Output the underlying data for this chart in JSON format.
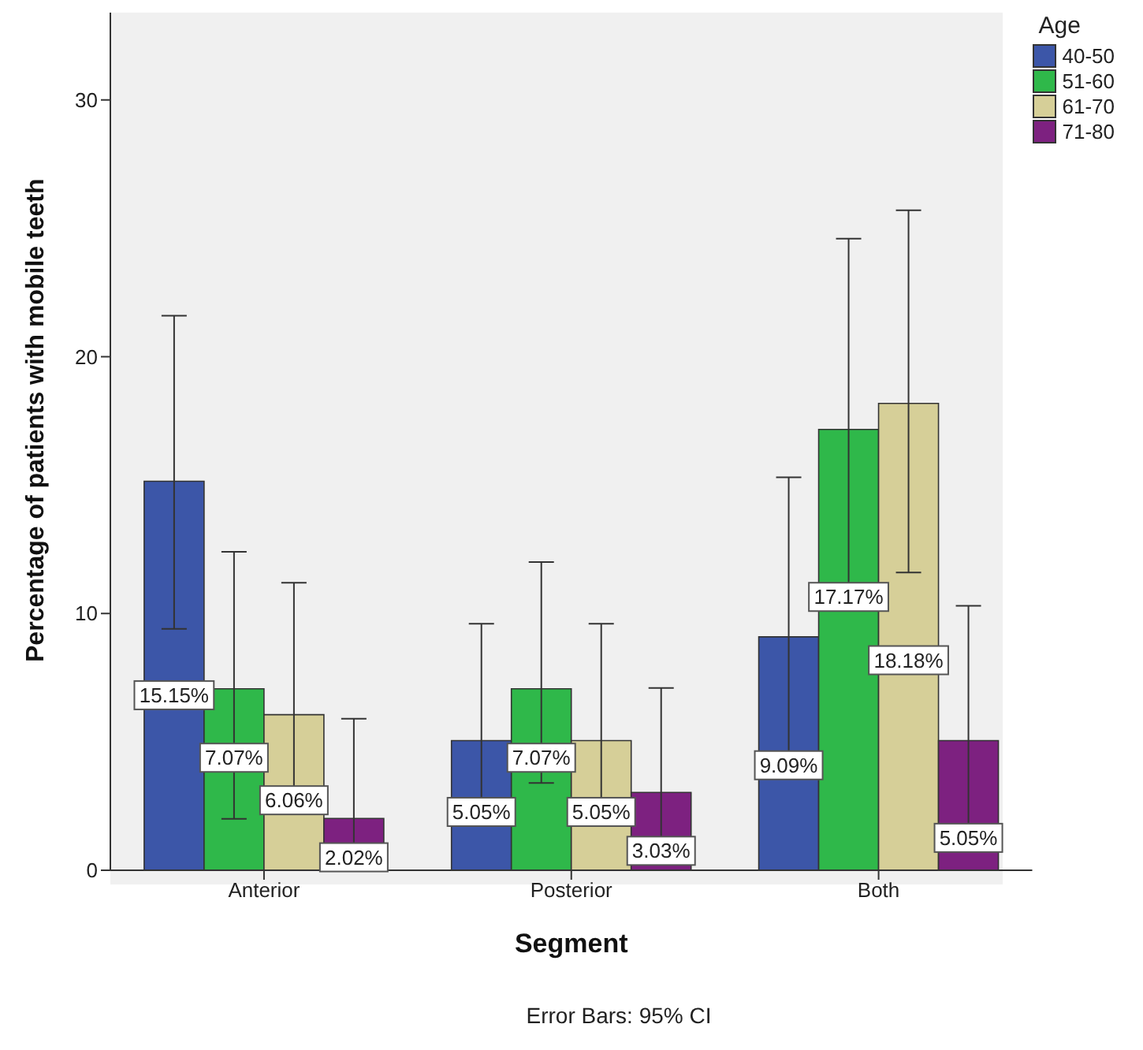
{
  "chart_data": {
    "type": "bar",
    "xlabel": "Segment",
    "ylabel": "Percentage of patients with mobile teeth",
    "legend_title": "Age",
    "categories": [
      "Anterior",
      "Posterior",
      "Both"
    ],
    "series": [
      {
        "name": "40-50",
        "color": "#3c56a8",
        "values": [
          15.15,
          5.05,
          9.09
        ],
        "errors": [
          [
            9.4,
            21.6
          ],
          [
            1.8,
            9.6
          ],
          [
            4.5,
            15.3
          ]
        ],
        "value_labels": [
          "15.15%",
          "5.05%",
          "9.09%"
        ]
      },
      {
        "name": "51-60",
        "color": "#2fb84a",
        "values": [
          7.07,
          7.07,
          17.17
        ],
        "errors": [
          [
            2.0,
            12.4
          ],
          [
            3.4,
            12.0
          ],
          [
            10.8,
            24.6
          ]
        ],
        "value_labels": [
          "7.07%",
          "7.07%",
          "17.17%"
        ]
      },
      {
        "name": "61-70",
        "color": "#d6cf98",
        "values": [
          6.06,
          5.05,
          18.18
        ],
        "errors": [
          [
            2.6,
            11.2
          ],
          [
            1.8,
            9.6
          ],
          [
            11.6,
            25.7
          ]
        ],
        "value_labels": [
          "6.06%",
          "5.05%",
          "18.18%"
        ]
      },
      {
        "name": "71-80",
        "color": "#7d2180",
        "values": [
          2.02,
          3.03,
          5.05
        ],
        "errors": [
          [
            0.3,
            5.9
          ],
          [
            0.6,
            7.1
          ],
          [
            1.8,
            10.3
          ]
        ],
        "value_labels": [
          "2.02%",
          "3.03%",
          "5.05%"
        ]
      }
    ],
    "ylim": [
      0,
      33.4
    ],
    "yticks": [
      0,
      10,
      20,
      30
    ],
    "grid": false,
    "legend": "top right",
    "annotations": [
      "Error Bars: 95% CI"
    ]
  }
}
